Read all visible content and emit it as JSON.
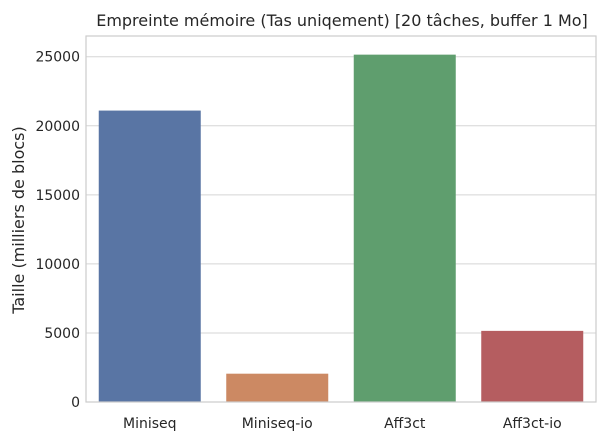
{
  "chart_data": {
    "type": "bar",
    "title": "Empreinte mémoire (Tas uniqement) [20 tâches, buffer 1 Mo]",
    "xlabel": "",
    "ylabel": "Taille (milliers de blocs)",
    "categories": [
      "Miniseq",
      "Miniseq-io",
      "Aff3ct",
      "Aff3ct-io"
    ],
    "values": [
      21100,
      2050,
      25150,
      5150
    ],
    "colors": [
      "#5975a4",
      "#cc8963",
      "#5f9e6e",
      "#b55d60"
    ],
    "ylim": [
      0,
      26500
    ],
    "yticks": [
      0,
      5000,
      10000,
      15000,
      20000,
      25000
    ],
    "ytick_labels": [
      "0",
      "5000",
      "10000",
      "15000",
      "20000",
      "25000"
    ],
    "grid": "horizontal",
    "style": {
      "background": "#ffffff",
      "grid_color": "#d5d5d5",
      "spine_color": "#cccccc",
      "text_color": "#262626"
    }
  }
}
